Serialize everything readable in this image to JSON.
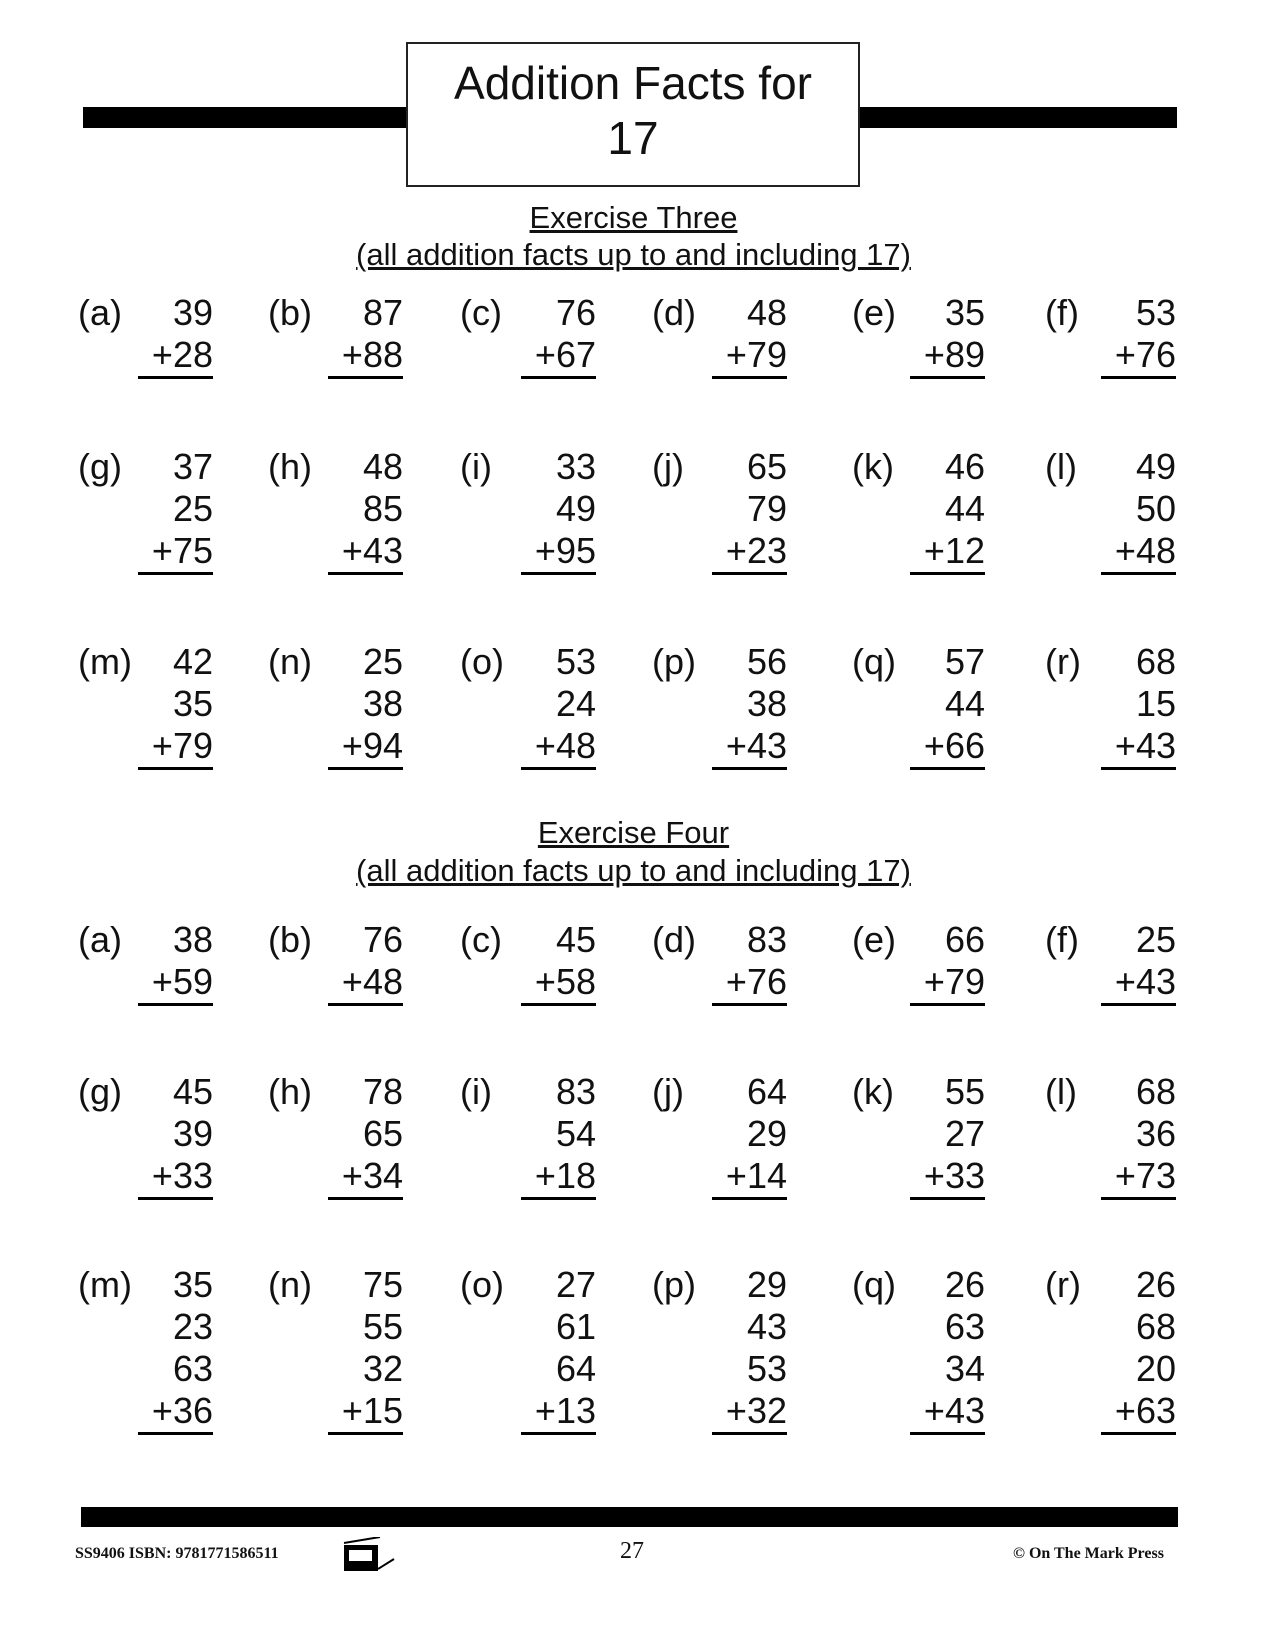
{
  "title_line1": "Addition Facts for",
  "title_line2": "17",
  "exercises": [
    {
      "title": "Exercise Three",
      "subtitle": "(all addition facts up to and including 17)",
      "rows": [
        [
          {
            "label": "(a)",
            "nums": [
              "39",
              "+28"
            ]
          },
          {
            "label": "(b)",
            "nums": [
              "87",
              "+88"
            ]
          },
          {
            "label": "(c)",
            "nums": [
              "76",
              "+67"
            ]
          },
          {
            "label": "(d)",
            "nums": [
              "48",
              "+79"
            ]
          },
          {
            "label": "(e)",
            "nums": [
              "35",
              "+89"
            ]
          },
          {
            "label": "(f)",
            "nums": [
              "53",
              "+76"
            ]
          }
        ],
        [
          {
            "label": "(g)",
            "nums": [
              "37",
              "25",
              "+75"
            ]
          },
          {
            "label": "(h)",
            "nums": [
              "48",
              "85",
              "+43"
            ]
          },
          {
            "label": "(i)",
            "nums": [
              "33",
              "49",
              "+95"
            ]
          },
          {
            "label": "(j)",
            "nums": [
              "65",
              "79",
              "+23"
            ]
          },
          {
            "label": "(k)",
            "nums": [
              "46",
              "44",
              "+12"
            ]
          },
          {
            "label": "(l)",
            "nums": [
              "49",
              "50",
              "+48"
            ]
          }
        ],
        [
          {
            "label": "(m)",
            "nums": [
              "42",
              "35",
              "+79"
            ]
          },
          {
            "label": "(n)",
            "nums": [
              "25",
              "38",
              "+94"
            ]
          },
          {
            "label": "(o)",
            "nums": [
              "53",
              "24",
              "+48"
            ]
          },
          {
            "label": "(p)",
            "nums": [
              "56",
              "38",
              "+43"
            ]
          },
          {
            "label": "(q)",
            "nums": [
              "57",
              "44",
              "+66"
            ]
          },
          {
            "label": "(r)",
            "nums": [
              "68",
              "15",
              "+43"
            ]
          }
        ]
      ]
    },
    {
      "title": "Exercise Four",
      "subtitle": "(all addition facts up to and including 17)",
      "rows": [
        [
          {
            "label": "(a)",
            "nums": [
              "38",
              "+59"
            ]
          },
          {
            "label": "(b)",
            "nums": [
              "76",
              "+48"
            ]
          },
          {
            "label": "(c)",
            "nums": [
              "45",
              "+58"
            ]
          },
          {
            "label": "(d)",
            "nums": [
              "83",
              "+76"
            ]
          },
          {
            "label": "(e)",
            "nums": [
              "66",
              "+79"
            ]
          },
          {
            "label": "(f)",
            "nums": [
              "25",
              "+43"
            ]
          }
        ],
        [
          {
            "label": "(g)",
            "nums": [
              "45",
              "39",
              "+33"
            ]
          },
          {
            "label": "(h)",
            "nums": [
              "78",
              "65",
              "+34"
            ]
          },
          {
            "label": "(i)",
            "nums": [
              "83",
              "54",
              "+18"
            ]
          },
          {
            "label": "(j)",
            "nums": [
              "64",
              "29",
              "+14"
            ]
          },
          {
            "label": "(k)",
            "nums": [
              "55",
              "27",
              "+33"
            ]
          },
          {
            "label": "(l)",
            "nums": [
              "68",
              "36",
              "+73"
            ]
          }
        ],
        [
          {
            "label": "(m)",
            "nums": [
              "35",
              "23",
              "63",
              "+36"
            ]
          },
          {
            "label": "(n)",
            "nums": [
              "75",
              "55",
              "32",
              "+15"
            ]
          },
          {
            "label": "(o)",
            "nums": [
              "27",
              "61",
              "64",
              "+13"
            ]
          },
          {
            "label": "(p)",
            "nums": [
              "29",
              "43",
              "53",
              "+32"
            ]
          },
          {
            "label": "(q)",
            "nums": [
              "26",
              "63",
              "34",
              "+43"
            ]
          },
          {
            "label": "(r)",
            "nums": [
              "26",
              "68",
              "20",
              "+63"
            ]
          }
        ]
      ]
    }
  ],
  "footer": {
    "code": "SS9406  ISBN: 9781771586511",
    "page_number": "27",
    "copyright": "© On The Mark Press",
    "logo_icon": "copier-icon"
  }
}
